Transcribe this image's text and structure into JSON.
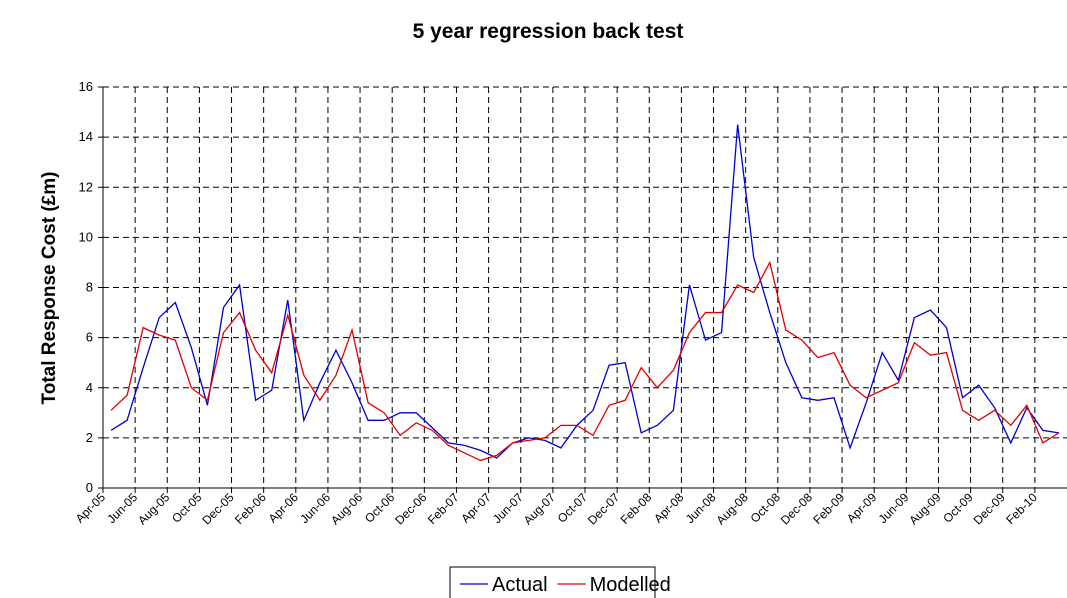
{
  "chart_data": {
    "type": "line",
    "title": "5 year regression back test",
    "y_label": "Total Response Cost (£m)",
    "categories": [
      "Apr-05",
      null,
      "Jun-05",
      null,
      "Aug-05",
      null,
      "Oct-05",
      null,
      "Dec-05",
      null,
      "Feb-06",
      null,
      "Apr-06",
      null,
      "Jun-06",
      null,
      "Aug-06",
      null,
      "Oct-06",
      null,
      "Dec-06",
      null,
      "Feb-07",
      null,
      "Apr-07",
      null,
      "Jun-07",
      null,
      "Aug-07",
      null,
      "Oct-07",
      null,
      "Dec-07",
      null,
      "Feb-08",
      null,
      "Apr-08",
      null,
      "Jun-08",
      null,
      "Aug-08",
      null,
      "Oct-08",
      null,
      "Dec-08",
      null,
      "Feb-09",
      null,
      "Apr-09",
      null,
      "Jun-09",
      null,
      "Aug-09",
      null,
      "Oct-09",
      null,
      "Dec-09",
      null,
      "Feb-10",
      null
    ],
    "series": [
      {
        "name": "Actual",
        "color": "#0000cc",
        "values": [
          2.3,
          2.7,
          4.8,
          6.8,
          7.4,
          5.6,
          3.3,
          7.2,
          8.1,
          3.5,
          3.9,
          7.5,
          2.7,
          4.2,
          5.5,
          4.2,
          2.7,
          2.7,
          3.0,
          3.0,
          2.4,
          1.8,
          1.7,
          1.5,
          1.2,
          1.8,
          2.0,
          1.9,
          1.6,
          2.5,
          3.1,
          4.9,
          5.0,
          2.2,
          2.5,
          3.1,
          8.1,
          5.9,
          6.2,
          14.5,
          9.2,
          7.0,
          5.0,
          3.6,
          3.5,
          3.6,
          1.6,
          3.4,
          5.4,
          4.3,
          6.8,
          7.1,
          6.4,
          3.6,
          4.1,
          3.2,
          1.8,
          3.2,
          2.3,
          2.2
        ]
      },
      {
        "name": "Modelled",
        "color": "#e00000",
        "values": [
          3.1,
          3.7,
          6.4,
          6.1,
          5.9,
          4.0,
          3.5,
          6.2,
          7.0,
          5.5,
          4.6,
          6.9,
          4.5,
          3.5,
          4.5,
          6.3,
          3.4,
          3.0,
          2.1,
          2.6,
          2.3,
          1.7,
          1.4,
          1.1,
          1.3,
          1.8,
          1.9,
          2.0,
          2.5,
          2.5,
          2.1,
          3.3,
          3.5,
          4.8,
          4.0,
          4.7,
          6.2,
          7.0,
          7.0,
          8.1,
          7.8,
          9.0,
          6.3,
          5.9,
          5.2,
          5.4,
          4.1,
          3.6,
          3.9,
          4.2,
          5.8,
          5.3,
          5.4,
          3.1,
          2.7,
          3.1,
          2.5,
          3.3,
          1.8,
          2.2
        ]
      }
    ],
    "ylim": [
      0,
      16
    ],
    "yticks": [
      0,
      2,
      4,
      6,
      8,
      10,
      12,
      14,
      16
    ],
    "grid": true,
    "legend": "bottom"
  }
}
